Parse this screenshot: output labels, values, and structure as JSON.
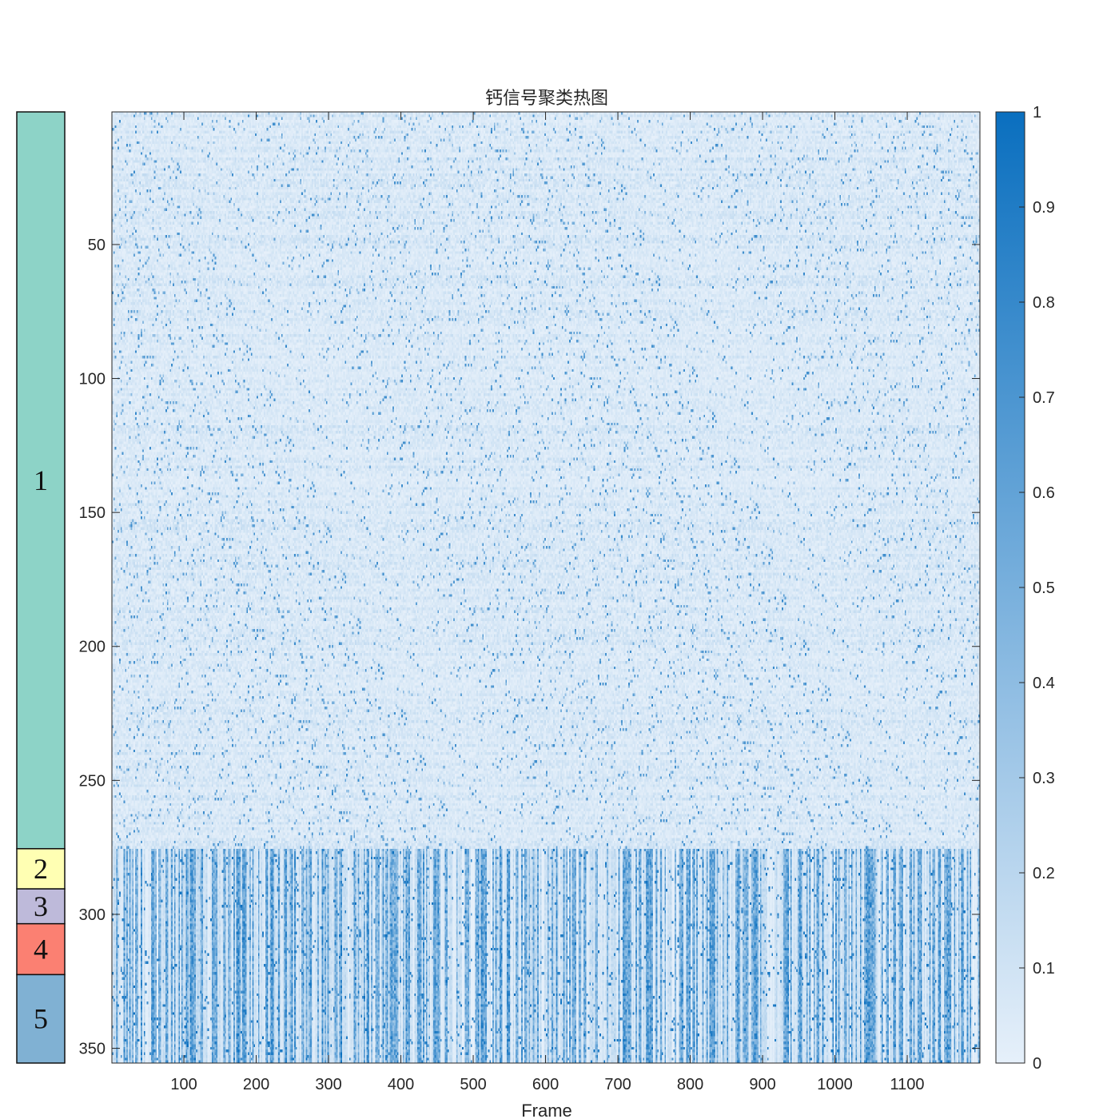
{
  "chart_data": {
    "type": "heatmap",
    "title": "钙信号聚类热图",
    "xlabel": "Frame",
    "ylabel": "",
    "xlim": [
      1,
      1200
    ],
    "ylim": [
      1,
      355
    ],
    "xticks": [
      100,
      200,
      300,
      400,
      500,
      600,
      700,
      800,
      900,
      1000,
      1100
    ],
    "xtick_labels": [
      "100",
      "200",
      "300",
      "400",
      "500",
      "600",
      "700",
      "800",
      "900",
      "1000",
      "1100"
    ],
    "yticks": [
      50,
      100,
      150,
      200,
      250,
      300,
      350
    ],
    "ytick_labels": [
      "50",
      "100",
      "150",
      "200",
      "250",
      "300",
      "350"
    ],
    "colorbar": {
      "range": [
        0,
        1
      ],
      "ticks": [
        0,
        0.1,
        0.2,
        0.3,
        0.4,
        0.5,
        0.6,
        0.7,
        0.8,
        0.9,
        1
      ],
      "tick_labels": [
        "0",
        "0.1",
        "0.2",
        "0.3",
        "0.4",
        "0.5",
        "0.6",
        "0.7",
        "0.8",
        "0.9",
        "1"
      ],
      "color_low": "#e6f0fa",
      "color_high": "#0a6fbf"
    },
    "clusters": [
      {
        "label": "1",
        "row_start": 1,
        "row_end": 275,
        "color": "#8dd3c7"
      },
      {
        "label": "2",
        "row_start": 276,
        "row_end": 290,
        "color": "#ffffb3"
      },
      {
        "label": "3",
        "row_start": 291,
        "row_end": 303,
        "color": "#bebada"
      },
      {
        "label": "4",
        "row_start": 304,
        "row_end": 322,
        "color": "#fb8072"
      },
      {
        "label": "5",
        "row_start": 323,
        "row_end": 355,
        "color": "#80b1d3"
      }
    ],
    "value_summary": {
      "cluster_mean_intensity": [
        0.08,
        0.3,
        0.3,
        0.32,
        0.32
      ]
    },
    "grid": false
  }
}
